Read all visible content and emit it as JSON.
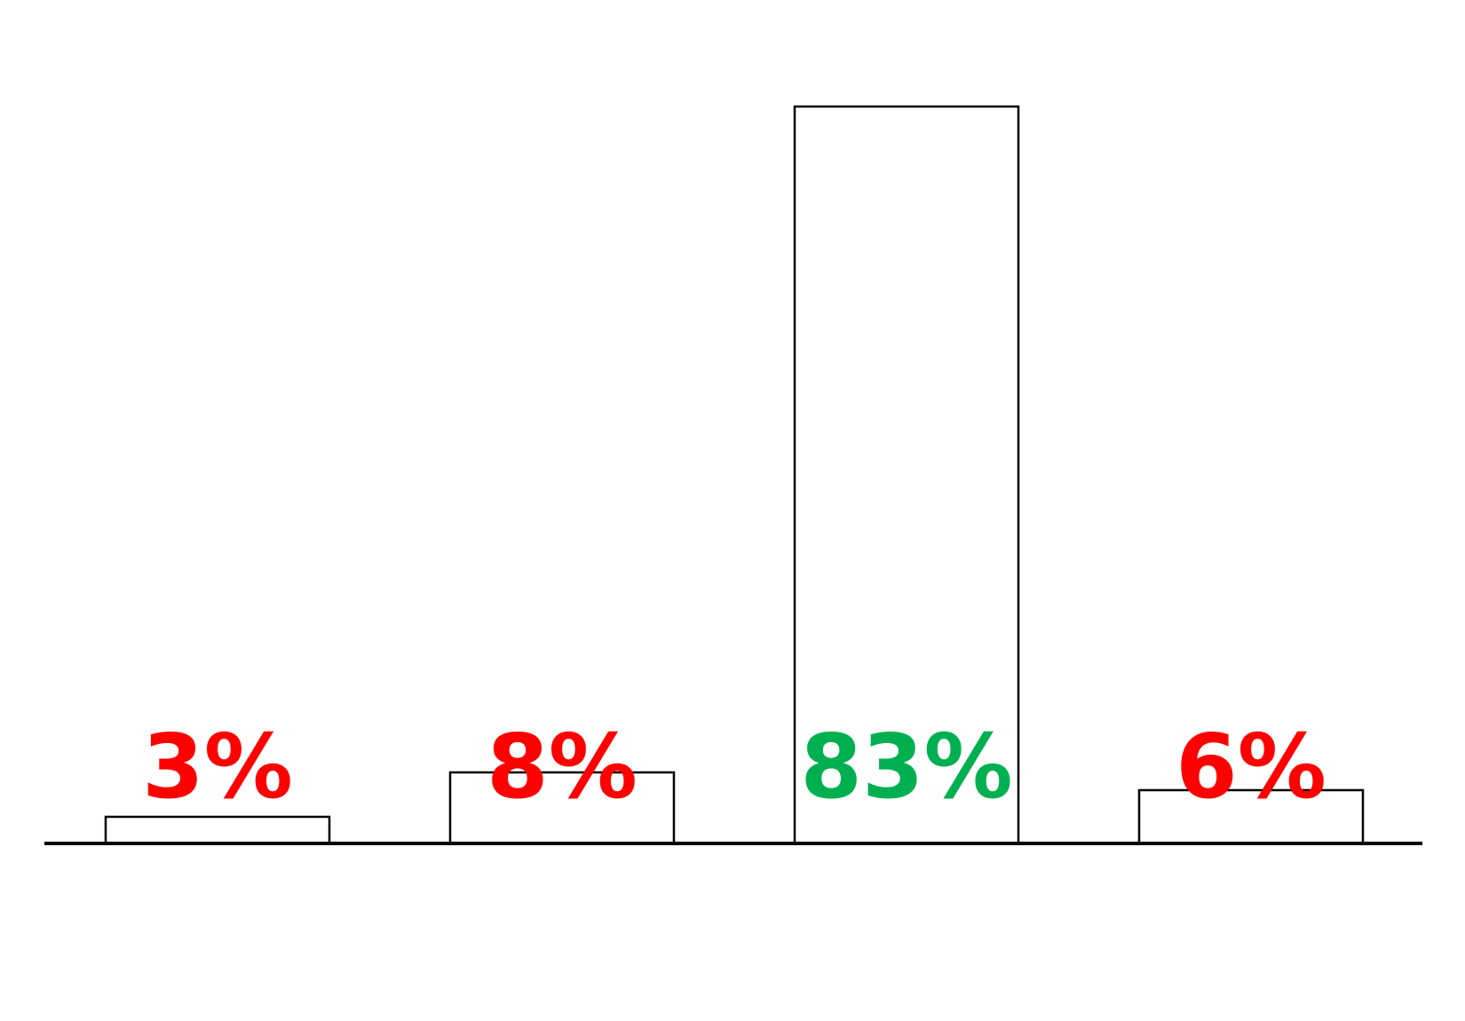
{
  "chart_data": {
    "type": "bar",
    "categories": [
      "",
      "",
      "",
      ""
    ],
    "values": [
      3,
      8,
      83,
      6
    ],
    "data_labels": [
      "3%",
      "8%",
      "83%",
      "6%"
    ],
    "label_colors": [
      "#ff0000",
      "#ff0000",
      "#00b050",
      "#ff0000"
    ],
    "bar_fill": "#ffffff",
    "bar_stroke": "#000000",
    "ylim": [
      0,
      100
    ],
    "title": "",
    "xlabel": "",
    "ylabel": "",
    "grid": false,
    "legend": "none"
  }
}
